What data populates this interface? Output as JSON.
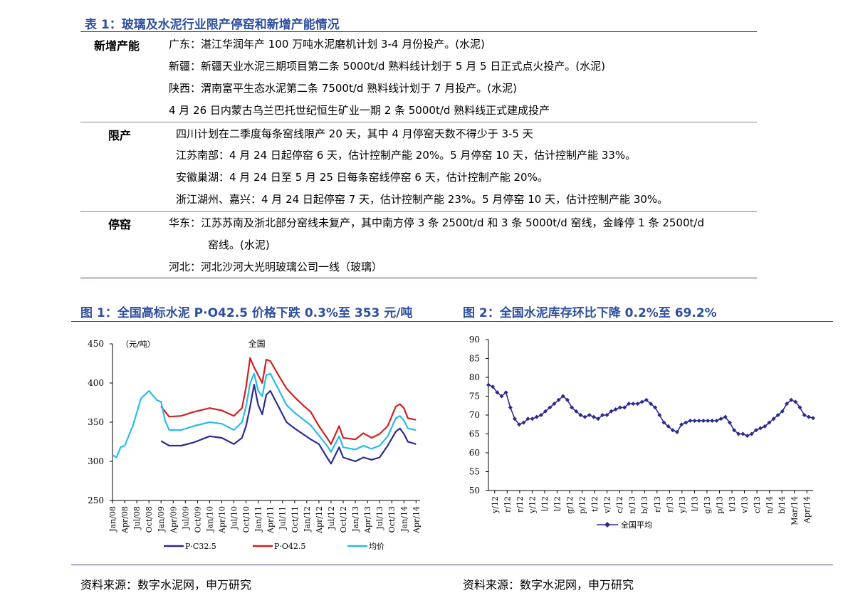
{
  "table": {
    "title": "表 1：玻璃及水泥行业限产停窑和新增产能情况",
    "rows": [
      {
        "label": "新增产能",
        "lines": [
          "广东：湛江华润年产 100 万吨水泥磨机计划 3-4 月份投产。(水泥)",
          "新疆：新疆天业水泥三期项目第二条 5000t/d 熟料线计划于 5 月 5 日正式点火投产。(水泥)",
          "陕西：渭南富平生态水泥第二条 7500t/d 熟料线计划于 7 月投产。(水泥)",
          "4 月 26 日内蒙古乌兰巴托世纪恒生矿业一期 2 条 5000t/d 熟料线正式建成投产"
        ]
      },
      {
        "label": "限产",
        "lines": [
          "四川计划在二季度每条窑线限产 20 天，其中 4 月停窑天数不得少于 3-5 天",
          "江苏南部：4 月 24 日起停窑 6 天，估计控制产能 20%。5 月停窑 10 天，估计控制产能 33%。",
          "安徽巢湖：4 月 24 日至 5 月 25 日每条窑线停窑 6 天，估计控制产能 20%。",
          "浙江湖州、嘉兴：4 月 24 日起停窑 7 天，估计控制产能 23%。5 月停窑 10 天，估计控制产能 30%。"
        ]
      },
      {
        "label": "停窑",
        "lines": [
          "华东：江苏苏南及浙北部分窑线未复产，其中南方停 3 条 2500t/d 和 3 条 5000t/d 窑线，金峰停 1 条 2500t/d",
          "窑线。(水泥)",
          "河北：河北沙河大光明玻璃公司一线（玻璃）"
        ]
      }
    ]
  },
  "figure1": {
    "title": "图 1：全国高标水泥 P·O42.5 价格下跌 0.3%至 353 元/吨",
    "source": "资料来源：数字水泥网，申万研究"
  },
  "figure2": {
    "title": "图 2：全国水泥库存环比下降 0.2%至 69.2%",
    "source": "资料来源：数字水泥网，申万研究"
  },
  "chart_data": [
    {
      "type": "line",
      "unit_label": "（元/吨）",
      "annotation": "全国",
      "ylim": [
        250,
        450
      ],
      "yticks": [
        250,
        300,
        350,
        400,
        450
      ],
      "xlim": [
        "2008-01",
        "2014-05"
      ],
      "xticks": [
        "Jan/08",
        "Apr/08",
        "Jul/08",
        "Oct/08",
        "Jan/09",
        "Apr/09",
        "Jul/09",
        "Oct/09",
        "Jan/10",
        "Apr/10",
        "Jul/10",
        "Oct/10",
        "Jan/11",
        "Apr/11",
        "Jul/11",
        "Oct/11",
        "Jan/12",
        "Apr/12",
        "Jul/12",
        "Oct/12",
        "Jan/13",
        "Apr/13",
        "Jul/13",
        "Oct/13",
        "Jan/14",
        "Apr/14"
      ],
      "series": [
        {
          "name": "P·C32.5",
          "color": "#2b2b8f",
          "points": [
            [
              "2009-01",
              326
            ],
            [
              "2009-03",
              320
            ],
            [
              "2009-06",
              320
            ],
            [
              "2009-09",
              324
            ],
            [
              "2010-01",
              332
            ],
            [
              "2010-04",
              330
            ],
            [
              "2010-07",
              322
            ],
            [
              "2010-09",
              330
            ],
            [
              "2010-10",
              345
            ],
            [
              "2010-11",
              370
            ],
            [
              "2010-12",
              398
            ],
            [
              "2011-01",
              372
            ],
            [
              "2011-02",
              360
            ],
            [
              "2011-03",
              385
            ],
            [
              "2011-04",
              390
            ],
            [
              "2011-06",
              370
            ],
            [
              "2011-08",
              350
            ],
            [
              "2011-10",
              342
            ],
            [
              "2011-12",
              335
            ],
            [
              "2012-02",
              328
            ],
            [
              "2012-04",
              322
            ],
            [
              "2012-06",
              305
            ],
            [
              "2012-07",
              297
            ],
            [
              "2012-09",
              318
            ],
            [
              "2012-10",
              305
            ],
            [
              "2013-01",
              300
            ],
            [
              "2013-03",
              305
            ],
            [
              "2013-05",
              302
            ],
            [
              "2013-07",
              305
            ],
            [
              "2013-09",
              320
            ],
            [
              "2013-11",
              338
            ],
            [
              "2013-12",
              342
            ],
            [
              "2014-01",
              335
            ],
            [
              "2014-02",
              325
            ],
            [
              "2014-04",
              322
            ]
          ]
        },
        {
          "name": "P·O42.5",
          "color": "#d02020",
          "points": [
            [
              "2009-01",
              370
            ],
            [
              "2009-03",
              357
            ],
            [
              "2009-06",
              358
            ],
            [
              "2009-09",
              363
            ],
            [
              "2010-01",
              368
            ],
            [
              "2010-04",
              365
            ],
            [
              "2010-07",
              358
            ],
            [
              "2010-09",
              368
            ],
            [
              "2010-10",
              395
            ],
            [
              "2010-11",
              432
            ],
            [
              "2010-12",
              420
            ],
            [
              "2011-01",
              410
            ],
            [
              "2011-02",
              400
            ],
            [
              "2011-03",
              430
            ],
            [
              "2011-04",
              428
            ],
            [
              "2011-06",
              410
            ],
            [
              "2011-08",
              393
            ],
            [
              "2011-10",
              382
            ],
            [
              "2011-12",
              372
            ],
            [
              "2012-02",
              363
            ],
            [
              "2012-04",
              345
            ],
            [
              "2012-06",
              330
            ],
            [
              "2012-07",
              322
            ],
            [
              "2012-09",
              345
            ],
            [
              "2012-10",
              330
            ],
            [
              "2013-01",
              328
            ],
            [
              "2013-03",
              336
            ],
            [
              "2013-05",
              330
            ],
            [
              "2013-07",
              335
            ],
            [
              "2013-09",
              345
            ],
            [
              "2013-11",
              370
            ],
            [
              "2013-12",
              373
            ],
            [
              "2014-01",
              368
            ],
            [
              "2014-02",
              355
            ],
            [
              "2014-04",
              353
            ]
          ]
        },
        {
          "name": "均价",
          "color": "#25bde8",
          "points": [
            [
              "2008-01",
              308
            ],
            [
              "2008-02",
              305
            ],
            [
              "2008-03",
              318
            ],
            [
              "2008-04",
              320
            ],
            [
              "2008-06",
              345
            ],
            [
              "2008-07",
              362
            ],
            [
              "2008-08",
              380
            ],
            [
              "2008-10",
              390
            ],
            [
              "2008-11",
              384
            ],
            [
              "2008-12",
              378
            ],
            [
              "2009-01",
              376
            ],
            [
              "2009-02",
              352
            ],
            [
              "2009-03",
              340
            ],
            [
              "2009-06",
              340
            ],
            [
              "2009-09",
              345
            ],
            [
              "2010-01",
              350
            ],
            [
              "2010-04",
              348
            ],
            [
              "2010-07",
              340
            ],
            [
              "2010-09",
              350
            ],
            [
              "2010-10",
              370
            ],
            [
              "2010-11",
              400
            ],
            [
              "2010-12",
              412
            ],
            [
              "2011-01",
              390
            ],
            [
              "2011-02",
              383
            ],
            [
              "2011-03",
              410
            ],
            [
              "2011-04",
              412
            ],
            [
              "2011-06",
              392
            ],
            [
              "2011-08",
              372
            ],
            [
              "2011-10",
              362
            ],
            [
              "2011-12",
              354
            ],
            [
              "2012-02",
              346
            ],
            [
              "2012-04",
              333
            ],
            [
              "2012-06",
              320
            ],
            [
              "2012-07",
              312
            ],
            [
              "2012-09",
              332
            ],
            [
              "2012-10",
              318
            ],
            [
              "2013-01",
              315
            ],
            [
              "2013-03",
              320
            ],
            [
              "2013-05",
              316
            ],
            [
              "2013-07",
              320
            ],
            [
              "2013-09",
              332
            ],
            [
              "2013-11",
              355
            ],
            [
              "2013-12",
              358
            ],
            [
              "2014-01",
              352
            ],
            [
              "2014-02",
              342
            ],
            [
              "2014-04",
              340
            ]
          ]
        }
      ]
    },
    {
      "type": "line",
      "ylim": [
        50,
        90
      ],
      "yticks": [
        50,
        55,
        60,
        65,
        70,
        75,
        80,
        85,
        90
      ],
      "xticks": [
        "y/12",
        "r/12",
        "r/12",
        "y/12",
        "l/12",
        "l/12",
        "g/12",
        "p/12",
        "t/12",
        "v/12",
        "c/12",
        "n/13",
        "b/13",
        "r/13",
        "r/13",
        "y/13",
        "l/13",
        "g/13",
        "p/13",
        "t/13",
        "v/13",
        "c/13",
        "n/14",
        "b/14",
        "Mar/14",
        "Apr/14"
      ],
      "series": [
        {
          "name": "全国平均",
          "color": "#2b2b8f",
          "marker": "diamond",
          "values": [
            78,
            77.5,
            76,
            75,
            76,
            72,
            69,
            67.5,
            68,
            69,
            69,
            69.5,
            70,
            71,
            72,
            73,
            74,
            75,
            74,
            72,
            71,
            70,
            69.5,
            70,
            69.5,
            69,
            70,
            70,
            71,
            71.5,
            72,
            72,
            73,
            73,
            73,
            73.5,
            74,
            73,
            72,
            70,
            68,
            67,
            66,
            65.5,
            67.5,
            68,
            68.5,
            68.5,
            68.5,
            68.5,
            68.5,
            68.5,
            68.5,
            69,
            69.5,
            68,
            66,
            65,
            65,
            64.5,
            65,
            66,
            66.5,
            67,
            68,
            69,
            70,
            71,
            73,
            74,
            73.5,
            72,
            70,
            69.5,
            69.2
          ]
        }
      ]
    }
  ]
}
